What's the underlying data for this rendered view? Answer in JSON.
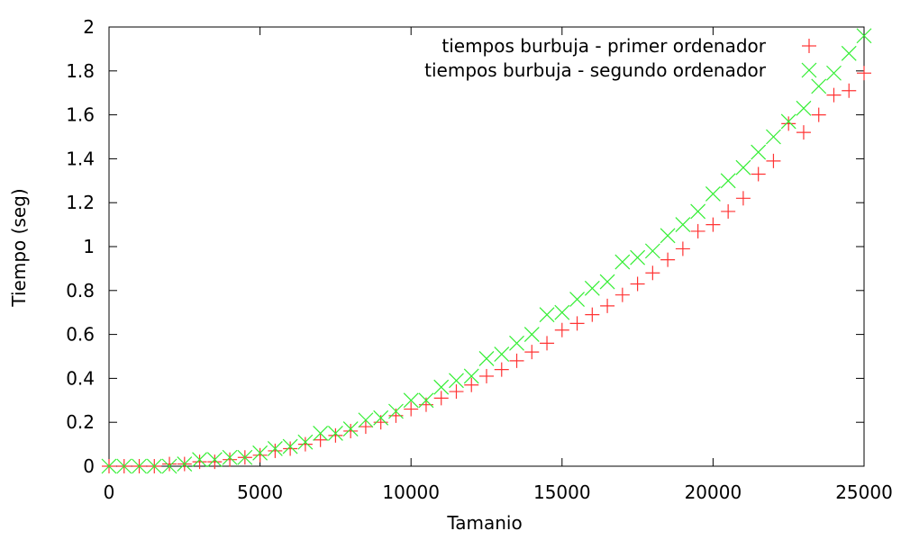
{
  "chart_data": {
    "type": "scatter",
    "xlabel": "Tamanio",
    "ylabel": "Tiempo (seg)",
    "xlim": [
      0,
      25000
    ],
    "ylim": [
      0,
      2
    ],
    "xticks": [
      0,
      5000,
      10000,
      15000,
      20000,
      25000
    ],
    "yticks": [
      0,
      0.2,
      0.4,
      0.6,
      0.8,
      1,
      1.2,
      1.4,
      1.6,
      1.8,
      2
    ],
    "xtick_labels": [
      "0",
      "5000",
      "10000",
      "15000",
      "20000",
      "25000"
    ],
    "ytick_labels": [
      "0",
      "0.2",
      "0.4",
      "0.6",
      "0.8",
      "1",
      "1.2",
      "1.4",
      "1.6",
      "1.8",
      "2"
    ],
    "grid": false,
    "legend_position": "top-right",
    "x": [
      0,
      500,
      1000,
      1500,
      2000,
      2500,
      3000,
      3500,
      4000,
      4500,
      5000,
      5500,
      6000,
      6500,
      7000,
      7500,
      8000,
      8500,
      9000,
      9500,
      10000,
      10500,
      11000,
      11500,
      12000,
      12500,
      13000,
      13500,
      14000,
      14500,
      15000,
      15500,
      16000,
      16500,
      17000,
      17500,
      18000,
      18500,
      19000,
      19500,
      20000,
      20500,
      21000,
      21500,
      22000,
      22500,
      23000,
      23500,
      24000,
      24500,
      25000
    ],
    "series": [
      {
        "name": "tiempos burbuja - primer ordenador",
        "marker": "plus",
        "color": "#ff3333",
        "values": [
          0.0,
          0.0,
          0.0,
          0.0,
          0.01,
          0.01,
          0.02,
          0.02,
          0.03,
          0.04,
          0.05,
          0.07,
          0.08,
          0.1,
          0.12,
          0.14,
          0.16,
          0.18,
          0.2,
          0.23,
          0.26,
          0.28,
          0.31,
          0.34,
          0.37,
          0.41,
          0.44,
          0.48,
          0.52,
          0.56,
          0.62,
          0.65,
          0.69,
          0.73,
          0.78,
          0.83,
          0.88,
          0.94,
          0.99,
          1.07,
          1.1,
          1.16,
          1.22,
          1.33,
          1.39,
          1.56,
          1.52,
          1.6,
          1.69,
          1.71,
          1.79
        ]
      },
      {
        "name": "tiempos burbuja - segundo ordenador",
        "marker": "cross",
        "color": "#33ee33",
        "values": [
          0.0,
          0.0,
          0.0,
          0.0,
          0.0,
          0.01,
          0.03,
          0.03,
          0.04,
          0.04,
          0.06,
          0.08,
          0.09,
          0.11,
          0.15,
          0.15,
          0.17,
          0.21,
          0.22,
          0.25,
          0.3,
          0.3,
          0.36,
          0.39,
          0.41,
          0.49,
          0.51,
          0.56,
          0.6,
          0.69,
          0.7,
          0.76,
          0.81,
          0.84,
          0.93,
          0.95,
          0.98,
          1.05,
          1.1,
          1.16,
          1.24,
          1.3,
          1.36,
          1.43,
          1.5,
          1.57,
          1.63,
          1.73,
          1.79,
          1.88,
          1.96
        ]
      }
    ]
  }
}
